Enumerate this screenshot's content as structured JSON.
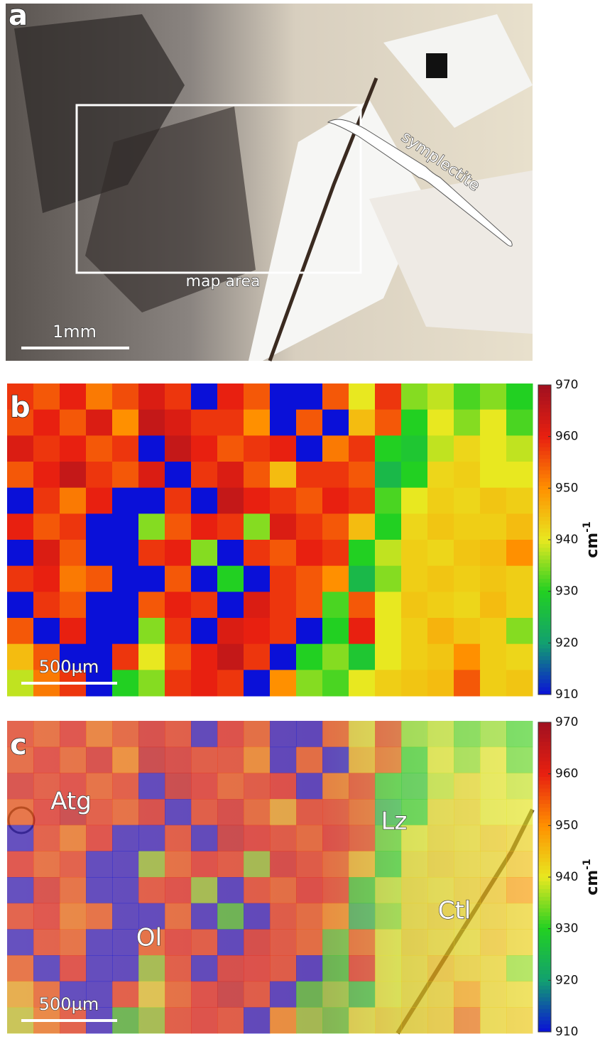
{
  "chart_data": [
    {
      "type": "image",
      "panel": "a",
      "annotations": [
        "symplectite",
        "map area"
      ],
      "scale_bar": "1mm"
    },
    {
      "type": "heatmap",
      "panel": "b",
      "scale_bar": "500µm",
      "clim": [
        910,
        970
      ],
      "cticks": [
        910,
        920,
        930,
        940,
        950,
        960,
        970
      ],
      "colorbar_label": "cm",
      "colorbar_label_exponent": "-1",
      "colormap": [
        "#0a10d8",
        "#12a070",
        "#22d022",
        "#e8e820",
        "#ff9000",
        "#e82010",
        "#a01020"
      ],
      "values": [
        [
          958,
          955,
          960,
          952,
          956,
          962,
          958,
          910,
          960,
          955,
          910,
          910,
          955,
          940,
          958,
          935,
          938,
          932,
          935,
          930
        ],
        [
          956,
          960,
          955,
          962,
          950,
          965,
          962,
          958,
          958,
          950,
          910,
          955,
          910,
          945,
          955,
          930,
          940,
          935,
          940,
          932
        ],
        [
          962,
          958,
          960,
          955,
          958,
          910,
          965,
          960,
          955,
          958,
          960,
          910,
          952,
          958,
          930,
          928,
          938,
          942,
          940,
          938
        ],
        [
          955,
          960,
          965,
          958,
          955,
          962,
          910,
          958,
          962,
          955,
          945,
          958,
          958,
          955,
          925,
          930,
          942,
          943,
          940,
          940
        ],
        [
          910,
          958,
          952,
          960,
          910,
          910,
          958,
          910,
          965,
          960,
          958,
          955,
          960,
          958,
          932,
          940,
          943,
          942,
          944,
          943
        ],
        [
          960,
          955,
          958,
          910,
          910,
          935,
          955,
          960,
          958,
          935,
          962,
          958,
          955,
          945,
          930,
          942,
          944,
          943,
          943,
          945
        ],
        [
          910,
          962,
          955,
          910,
          910,
          958,
          960,
          935,
          910,
          958,
          955,
          960,
          958,
          930,
          938,
          943,
          942,
          944,
          945,
          950
        ],
        [
          958,
          960,
          952,
          955,
          910,
          910,
          955,
          910,
          930,
          910,
          958,
          955,
          950,
          925,
          935,
          943,
          944,
          943,
          944,
          943
        ],
        [
          910,
          958,
          955,
          910,
          910,
          955,
          960,
          958,
          910,
          962,
          958,
          955,
          932,
          955,
          940,
          944,
          943,
          942,
          945,
          943
        ],
        [
          955,
          910,
          960,
          910,
          910,
          935,
          958,
          910,
          962,
          960,
          958,
          910,
          930,
          960,
          940,
          943,
          946,
          944,
          943,
          935
        ],
        [
          945,
          955,
          910,
          910,
          958,
          940,
          955,
          960,
          965,
          958,
          910,
          930,
          935,
          928,
          940,
          943,
          944,
          950,
          943,
          942
        ],
        [
          938,
          952,
          958,
          910,
          930,
          935,
          958,
          960,
          958,
          910,
          950,
          935,
          932,
          940,
          943,
          944,
          945,
          955,
          943,
          944
        ]
      ]
    },
    {
      "type": "overlay",
      "panel": "c",
      "scale_bar": "500µm",
      "clim": [
        910,
        970
      ],
      "cticks": [
        910,
        920,
        930,
        940,
        950,
        960,
        970
      ],
      "colorbar_label": "cm",
      "colorbar_label_exponent": "-1",
      "annotations": [
        "Atg",
        "Lz",
        "Ol",
        "Ctl"
      ]
    }
  ]
}
